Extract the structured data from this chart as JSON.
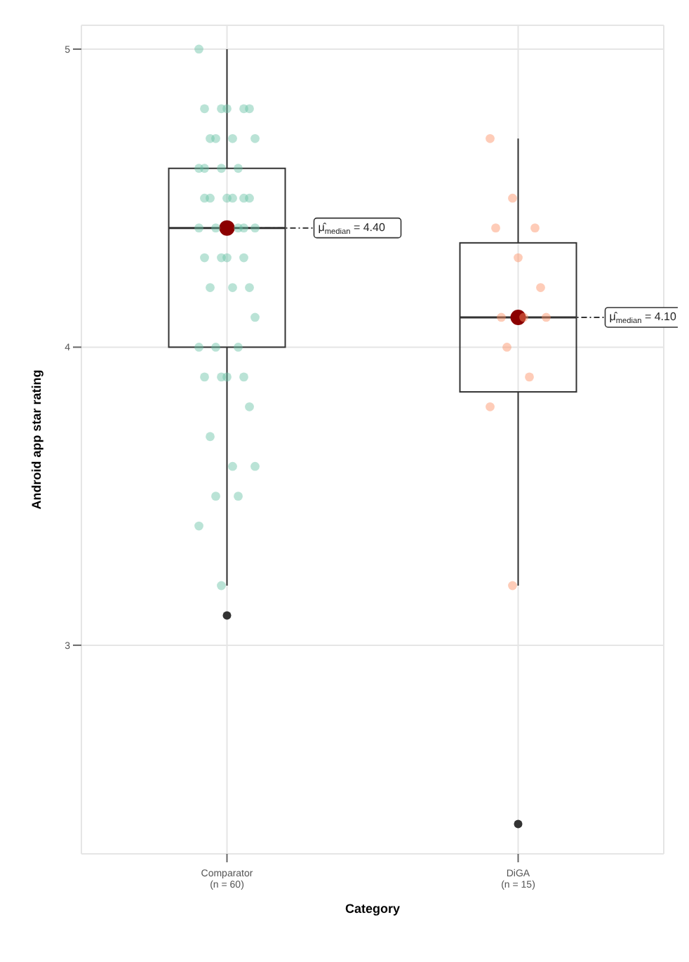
{
  "chart_data": {
    "type": "box",
    "xlabel": "Category",
    "ylabel": "Android app star rating",
    "categories": [
      "Comparator\n(n = 60)",
      "DiGA\n(n = 15)"
    ],
    "boxes": [
      {
        "low": 3.2,
        "q1": 4.0,
        "median": 4.4,
        "q3": 4.6,
        "high": 5.0,
        "outliers": [
          3.1
        ]
      },
      {
        "low": 3.2,
        "q1": 3.85,
        "median": 4.1,
        "q3": 4.35,
        "high": 4.7,
        "outliers": [
          2.4
        ]
      }
    ],
    "series": [
      {
        "type": "scatter",
        "color": "#66c2a5",
        "x": [
          "Comparator\n(n = 60)",
          "Comparator\n(n = 60)",
          "Comparator\n(n = 60)",
          "Comparator\n(n = 60)",
          "Comparator\n(n = 60)",
          "Comparator\n(n = 60)",
          "Comparator\n(n = 60)",
          "Comparator\n(n = 60)",
          "Comparator\n(n = 60)",
          "Comparator\n(n = 60)",
          "Comparator\n(n = 60)",
          "Comparator\n(n = 60)",
          "Comparator\n(n = 60)",
          "Comparator\n(n = 60)",
          "Comparator\n(n = 60)",
          "Comparator\n(n = 60)",
          "Comparator\n(n = 60)",
          "Comparator\n(n = 60)",
          "Comparator\n(n = 60)",
          "Comparator\n(n = 60)",
          "Comparator\n(n = 60)",
          "Comparator\n(n = 60)",
          "Comparator\n(n = 60)",
          "Comparator\n(n = 60)",
          "Comparator\n(n = 60)",
          "Comparator\n(n = 60)",
          "Comparator\n(n = 60)",
          "Comparator\n(n = 60)",
          "Comparator\n(n = 60)",
          "Comparator\n(n = 60)",
          "Comparator\n(n = 60)",
          "Comparator\n(n = 60)",
          "Comparator\n(n = 60)",
          "Comparator\n(n = 60)",
          "Comparator\n(n = 60)",
          "Comparator\n(n = 60)",
          "Comparator\n(n = 60)",
          "Comparator\n(n = 60)",
          "Comparator\n(n = 60)",
          "Comparator\n(n = 60)",
          "Comparator\n(n = 60)",
          "Comparator\n(n = 60)",
          "Comparator\n(n = 60)",
          "Comparator\n(n = 60)",
          "Comparator\n(n = 60)",
          "Comparator\n(n = 60)",
          "Comparator\n(n = 60)",
          "Comparator\n(n = 60)"
        ],
        "values": [
          5.0,
          4.8,
          4.8,
          4.8,
          4.8,
          4.8,
          4.7,
          4.7,
          4.7,
          4.7,
          4.6,
          4.6,
          4.6,
          4.5,
          4.5,
          4.5,
          4.5,
          4.5,
          4.5,
          4.4,
          4.4,
          4.4,
          4.4,
          4.3,
          4.3,
          4.3,
          4.3,
          4.2,
          4.2,
          4.2,
          4.1,
          4.0,
          4.0,
          4.0,
          3.9,
          3.9,
          3.9,
          3.9,
          3.8,
          3.7,
          3.6,
          3.6,
          3.5,
          3.5,
          3.4,
          3.2,
          4.4,
          4.6
        ]
      },
      {
        "type": "scatter",
        "color": "#fc8d62",
        "x": [
          "DiGA\n(n = 15)",
          "DiGA\n(n = 15)",
          "DiGA\n(n = 15)",
          "DiGA\n(n = 15)",
          "DiGA\n(n = 15)",
          "DiGA\n(n = 15)",
          "DiGA\n(n = 15)",
          "DiGA\n(n = 15)",
          "DiGA\n(n = 15)",
          "DiGA\n(n = 15)",
          "DiGA\n(n = 15)",
          "DiGA\n(n = 15)",
          "DiGA\n(n = 15)"
        ],
        "values": [
          4.7,
          4.5,
          4.4,
          4.4,
          4.3,
          4.2,
          4.1,
          4.1,
          4.1,
          4.0,
          3.9,
          3.8,
          3.2
        ]
      }
    ],
    "annotations": [
      {
        "text": "μ̂$_{median}$ = 4.40",
        "x": "Comparator\n(n = 60)",
        "y": 4.4
      },
      {
        "text": "μ̂$_{median}$ = 4.10",
        "x": "DiGA\n(n = 15)",
        "y": 4.1
      }
    ],
    "ylim": [
      2.3,
      5.08
    ],
    "yticks": [
      3,
      4,
      5
    ],
    "grid": true
  }
}
